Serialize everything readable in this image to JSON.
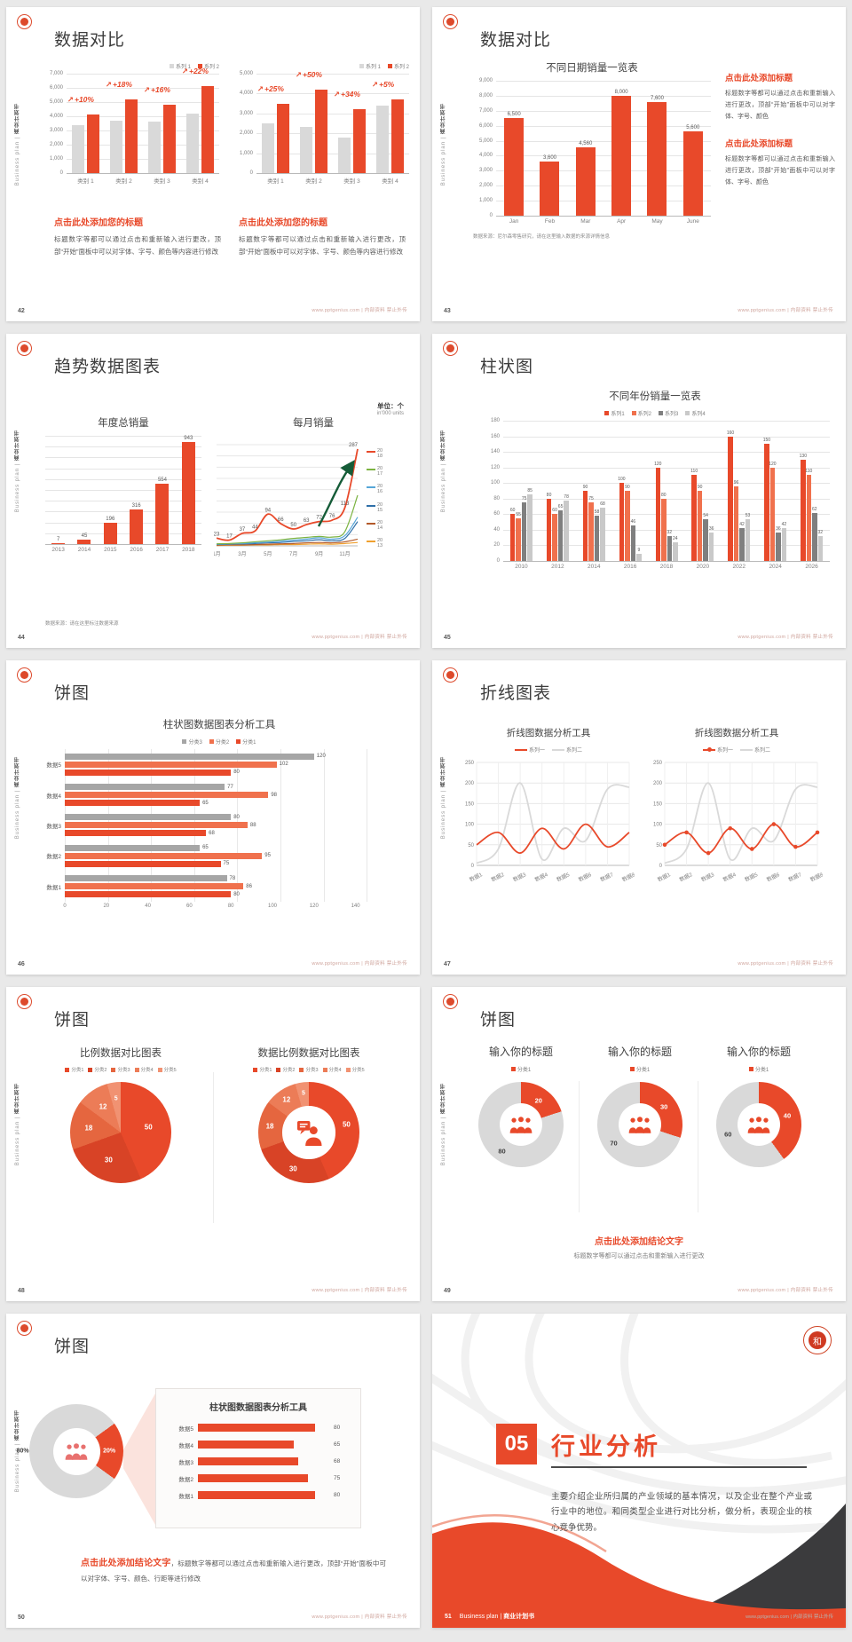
{
  "global": {
    "site": "www.pptgenius.com | 内部资料 禁止外传",
    "sidebar_en": "Business plan |",
    "sidebar_cn": "商业计划书",
    "logo_char": "和",
    "colors": {
      "red": "#e8492a",
      "salmon": "#f0714d",
      "gray_bar": "#d9d9d9",
      "gray_dark": "#7f7f7f",
      "gray_light": "#c9c9c9",
      "hb_gray": "#a6a6a6",
      "pie": [
        "#e8492a",
        "#d84326",
        "#e5663f",
        "#ec7c57",
        "#f19272"
      ],
      "line_years": [
        "#e8492a",
        "#7cb342",
        "#56a6d8",
        "#2f6fa8",
        "#b35a2a",
        "#f0a02e"
      ],
      "green_arrow": "#155c38"
    }
  },
  "slides": {
    "s42": {
      "page": "42",
      "title": "数据对比",
      "legend": [
        "系列 1",
        "系列 2"
      ],
      "chartA": {
        "yticks": [
          "7,000",
          "6,000",
          "5,000",
          "4,000",
          "3,000",
          "2,000",
          "1,000",
          "0"
        ],
        "ymax": 7000,
        "cats": [
          "类别 1",
          "类别 2",
          "类别 3",
          "类别 4"
        ],
        "series1": [
          3400,
          3700,
          3600,
          4200
        ],
        "series2": [
          4100,
          5200,
          4800,
          6100
        ],
        "pct": [
          "+10%",
          "+18%",
          "+16%",
          "+22%"
        ]
      },
      "chartB": {
        "yticks": [
          "5,000",
          "4,000",
          "3,000",
          "2,000",
          "1,000",
          "0"
        ],
        "ymax": 5000,
        "cats": [
          "类别 1",
          "类别 2",
          "类别 3",
          "类别 4"
        ],
        "series1": [
          2500,
          2300,
          1800,
          3400
        ],
        "series2": [
          3500,
          4200,
          3200,
          3700
        ],
        "pct": [
          "+25%",
          "+50%",
          "+34%",
          "+5%"
        ]
      },
      "blocks": [
        {
          "heading": "点击此处添加您的标题",
          "body": "标题数字等都可以通过点击和重新输入进行更改，顶部“开始”面板中可以对字体、字号、颜色等内容进行修改"
        },
        {
          "heading": "点击此处添加您的标题",
          "body": "标题数字等都可以通过点击和重新输入进行更改，顶部“开始”面板中可以对字体、字号、颜色等内容进行修改"
        }
      ]
    },
    "s43": {
      "page": "43",
      "title": "数据对比",
      "chart": {
        "title": "不同日期销量一览表",
        "yticks": [
          "9,000",
          "8,000",
          "7,000",
          "6,000",
          "5,000",
          "4,000",
          "3,000",
          "2,000",
          "1,000",
          "0"
        ],
        "ymax": 9000,
        "cats": [
          "Jan",
          "Feb",
          "Mar",
          "Apr",
          "May",
          "June"
        ],
        "values": [
          6500,
          3600,
          4560,
          8000,
          7600,
          5600
        ],
        "labels": [
          "6,500",
          "3,600",
          "4,560",
          "8,000",
          "7,600",
          "5,600"
        ]
      },
      "note": "数据来源：尼尔森零售研究，请在这里输入数据的来源详情信息",
      "blocks": [
        {
          "heading": "点击此处添加标题",
          "body": "标题数字等都可以通过点击和重新输入进行更改，顶部“开始”面板中可以对字体、字号、颜色"
        },
        {
          "heading": "点击此处添加标题",
          "body": "标题数字等都可以通过点击和重新输入进行更改，顶部“开始”面板中可以对字体、字号、颜色"
        }
      ]
    },
    "s44": {
      "page": "44",
      "title": "趋势数据图表",
      "unit1": "单位：个",
      "unit2": "in'000 units",
      "bar": {
        "title": "年度总销量",
        "cats": [
          "2013",
          "2014",
          "2015",
          "2016",
          "2017",
          "2018"
        ],
        "values": [
          7,
          45,
          196,
          316,
          554,
          943
        ],
        "ymax": 1000
      },
      "line": {
        "title": "每月销量",
        "xticks": [
          "1月",
          "3月",
          "5月",
          "7月",
          "9月",
          "11月"
        ],
        "years": [
          "2018",
          "2017",
          "2016",
          "2015",
          "2014",
          "2013"
        ],
        "series": [
          [
            23,
            17,
            37,
            44,
            94,
            66,
            50,
            63,
            72,
            76,
            113,
            287
          ],
          [
            6,
            7,
            9,
            12,
            15,
            18,
            22,
            25,
            28,
            26,
            42,
            150
          ],
          [
            5,
            6,
            7,
            9,
            11,
            14,
            17,
            20,
            24,
            20,
            30,
            85
          ],
          [
            4,
            5,
            6,
            7,
            9,
            10,
            13,
            15,
            18,
            15,
            22,
            72
          ],
          [
            2,
            3,
            3,
            4,
            5,
            6,
            7,
            9,
            10,
            9,
            12,
            20
          ],
          [
            1,
            2,
            2,
            3,
            3,
            4,
            4,
            5,
            6,
            5,
            7,
            10
          ]
        ],
        "ymax": 300
      },
      "note": "数据来源：请在这里标注数据来源"
    },
    "s45": {
      "page": "45",
      "title": "柱状图",
      "chart": {
        "title": "不同年份销量一览表",
        "legend": [
          "系列1",
          "系列2",
          "系列3",
          "系列4"
        ],
        "yticks": [
          "180",
          "160",
          "140",
          "120",
          "100",
          "80",
          "60",
          "40",
          "20",
          "0"
        ],
        "ymax": 180,
        "cats": [
          "2010",
          "2012",
          "2014",
          "2016",
          "2018",
          "2020",
          "2022",
          "2024",
          "2026"
        ],
        "s1": [
          60,
          80,
          90,
          100,
          120,
          110,
          160,
          150,
          130
        ],
        "s2": [
          55,
          60,
          75,
          90,
          80,
          90,
          96,
          120,
          110
        ],
        "s3": [
          75,
          65,
          58,
          46,
          32,
          54,
          42,
          36,
          62
        ],
        "s4": [
          85,
          78,
          68,
          9,
          24,
          36,
          53,
          42,
          32
        ]
      }
    },
    "s46": {
      "page": "46",
      "title": "饼图",
      "chart": {
        "title": "柱状图数据图表分析工具",
        "legend": [
          "分类3",
          "分类2",
          "分类1"
        ],
        "rows": [
          {
            "name": "数据5",
            "values": [
              120,
              102,
              80
            ]
          },
          {
            "name": "数据4",
            "values": [
              77,
              98,
              65
            ]
          },
          {
            "name": "数据3",
            "values": [
              80,
              88,
              68
            ]
          },
          {
            "name": "数据2",
            "values": [
              65,
              95,
              75
            ]
          },
          {
            "name": "数据1",
            "values": [
              78,
              86,
              80
            ]
          }
        ],
        "xticks": [
          "0",
          "20",
          "40",
          "60",
          "80",
          "100",
          "120",
          "140"
        ],
        "xmax": 140
      }
    },
    "s47": {
      "page": "47",
      "title": "折线图表",
      "legend": [
        "系列一",
        "系列二"
      ],
      "a": {
        "title": "折线图数据分析工具"
      },
      "b": {
        "title": "折线图数据分析工具"
      },
      "yticks": [
        "250",
        "200",
        "150",
        "100",
        "50",
        "0"
      ],
      "ymax": 250,
      "xticks": [
        "数据1",
        "数据2",
        "数据3",
        "数据4",
        "数据5",
        "数据6",
        "数据7",
        "数据8"
      ],
      "series1": [
        50,
        80,
        30,
        90,
        40,
        100,
        45,
        80
      ],
      "series2": [
        5,
        40,
        200,
        15,
        90,
        60,
        185,
        190
      ]
    },
    "s48": {
      "page": "48",
      "title": "饼图",
      "legend": [
        "分类1",
        "分类2",
        "分类3",
        "分类4",
        "分类5"
      ],
      "values": [
        50,
        30,
        18,
        12,
        5
      ],
      "pie": {
        "title": "比例数据对比图表"
      },
      "donut": {
        "title": "数据比例数据对比图表"
      }
    },
    "s49": {
      "page": "49",
      "title": "饼图",
      "titles": [
        "输入你的标题",
        "输入你的标题",
        "输入你的标题"
      ],
      "legend": "分类1",
      "donuts": [
        [
          20,
          80
        ],
        [
          30,
          70
        ],
        [
          40,
          60
        ]
      ],
      "conclusion": "点击此处添加结论文字",
      "sub": "标题数字等都可以通过点击和重新输入进行更改"
    },
    "s50": {
      "page": "50",
      "title": "饼图",
      "donut": {
        "red": 20,
        "gray": 80,
        "label_red": "20%",
        "label_gray": "80%"
      },
      "box": {
        "title": "柱状图数据图表分析工具",
        "rows": [
          {
            "name": "数据5",
            "value": 80
          },
          {
            "name": "数据4",
            "value": 65
          },
          {
            "name": "数据3",
            "value": 68
          },
          {
            "name": "数据2",
            "value": 75
          },
          {
            "name": "数据1",
            "value": 80
          }
        ]
      },
      "conclusion_bold": "点击此处添加结论文字",
      "conclusion_rest": "，标题数字等都可以通过点击和重新输入进行更改，顶部“开始”面板中可以对字体、字号、颜色、行距等进行修改"
    },
    "s51": {
      "page": "51",
      "num": "05",
      "title": "行业分析",
      "body": "主要介绍企业所归属的产业领域的基本情况，以及企业在整个产业或行业中的地位。和同类型企业进行对比分析，做分析，表现企业的核心竞争优势。",
      "footer_en": "Business plan |",
      "footer_cn": "商业计划书"
    }
  }
}
